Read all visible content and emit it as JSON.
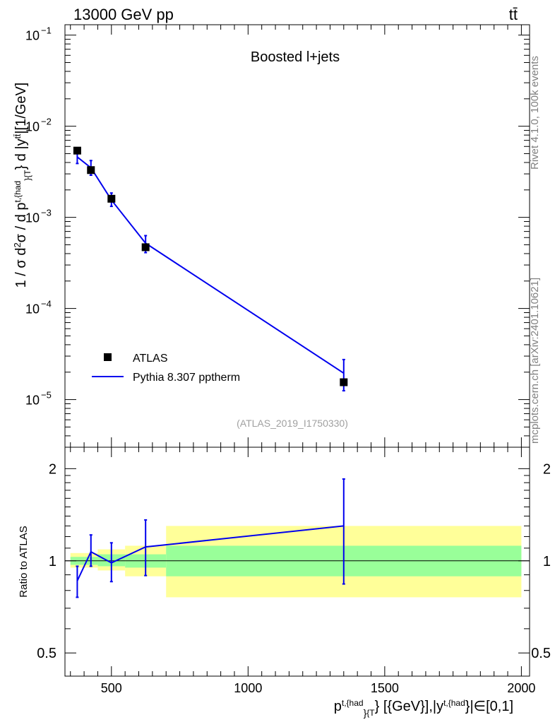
{
  "header": {
    "energy_label": "13000 GeV pp",
    "process_label": "tt̄"
  },
  "side_labels": {
    "rivet": "Rivet 4.1.0,  100k events",
    "mcplots": "mcplots.cern.ch [arXiv:2401.10621]"
  },
  "chart_data": [
    {
      "type": "line",
      "title": "Boosted l+jets",
      "analysis_tag": "(ATLAS_2019_I1750330)",
      "ylabel": "1 / σ d²σ / d p^{t,{had}}_{T} d |y^{tt̄}|[1/GeV]",
      "yscale": "log",
      "xlim": [
        330,
        2030
      ],
      "ylim": [
        3e-06,
        0.13
      ],
      "y_ticks": [
        {
          "value": 1e-05,
          "mantissa": "10",
          "exp": "−5"
        },
        {
          "value": 0.0001,
          "mantissa": "10",
          "exp": "−4"
        },
        {
          "value": 0.001,
          "mantissa": "10",
          "exp": "−3"
        },
        {
          "value": 0.01,
          "mantissa": "10",
          "exp": "−2"
        },
        {
          "value": 0.1,
          "mantissa": "10",
          "exp": "−1"
        }
      ],
      "legend": {
        "position": "bottom-left",
        "data_label": "ATLAS",
        "mc_label": "Pythia 8.307 pptherm"
      },
      "series": [
        {
          "name": "ATLAS",
          "style": "markers",
          "color": "#000000",
          "x": [
            375,
            425,
            500,
            625,
            1350
          ],
          "y": [
            0.0054,
            0.0033,
            0.0016,
            0.00047,
            1.55e-05
          ]
        },
        {
          "name": "Pythia 8.307 pptherm",
          "style": "line",
          "color": "#0000ee",
          "x": [
            375,
            425,
            500,
            625,
            1350
          ],
          "y": [
            0.0046,
            0.0035,
            0.00155,
            0.00052,
            1.95e-05
          ],
          "err_low": [
            0.0039,
            0.0029,
            0.00132,
            0.00041,
            1.25e-05
          ],
          "err_high": [
            0.0056,
            0.0042,
            0.00185,
            0.00063,
            2.75e-05
          ]
        }
      ]
    },
    {
      "type": "line",
      "ylabel": "Ratio to ATLAS",
      "yscale": "log",
      "ylim": [
        0.42,
        2.35
      ],
      "y_tick_labels": [
        {
          "value": 0.5,
          "label": "0.5"
        },
        {
          "value": 1,
          "label": "1"
        },
        {
          "value": 2,
          "label": "2"
        }
      ],
      "xlim": [
        330,
        2030
      ],
      "x_ticks": [
        500,
        1000,
        1500,
        2000
      ],
      "xlabel": {
        "base": "p",
        "sup1": "t,{had",
        "sub1": "}",
        "sub2": "{T",
        "rest": "} [{GeV}],|y",
        "sup2": "t,{had",
        "tail": "}|∈[0,1]"
      },
      "bands": [
        {
          "x0": 350,
          "x1": 400,
          "green": [
            0.97,
            1.03
          ],
          "yellow": [
            0.95,
            1.06
          ]
        },
        {
          "x0": 400,
          "x1": 450,
          "green": [
            0.97,
            1.03
          ],
          "yellow": [
            0.95,
            1.06
          ]
        },
        {
          "x0": 450,
          "x1": 550,
          "green": [
            0.96,
            1.05
          ],
          "yellow": [
            0.93,
            1.09
          ]
        },
        {
          "x0": 550,
          "x1": 700,
          "green": [
            0.95,
            1.05
          ],
          "yellow": [
            0.89,
            1.12
          ]
        },
        {
          "x0": 700,
          "x1": 2000,
          "green": [
            0.89,
            1.12
          ],
          "yellow": [
            0.76,
            1.3
          ]
        }
      ],
      "series": [
        {
          "name": "Pythia 8.307 pptherm / ATLAS",
          "color": "#0000ee",
          "x": [
            375,
            425,
            500,
            625,
            1350
          ],
          "y": [
            0.86,
            1.07,
            0.985,
            1.11,
            1.3
          ],
          "err_low": [
            0.76,
            0.96,
            0.855,
            0.895,
            0.84
          ],
          "err_high": [
            0.96,
            1.215,
            1.145,
            1.36,
            1.85
          ]
        }
      ]
    }
  ]
}
